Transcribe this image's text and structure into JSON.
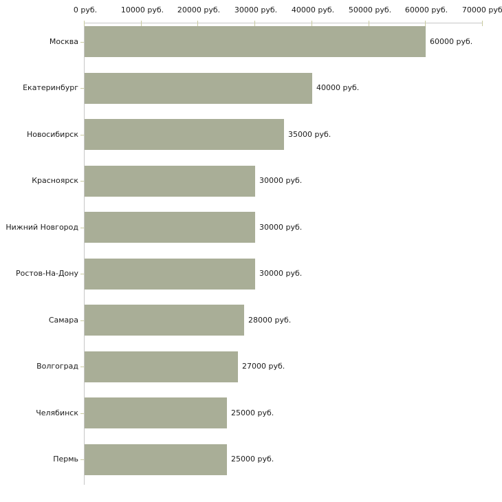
{
  "chart_data": {
    "type": "bar",
    "orientation": "horizontal",
    "title": "",
    "xlabel": "",
    "ylabel": "",
    "xlim": [
      0,
      70000
    ],
    "grid": false,
    "legend": null,
    "unit": "руб.",
    "categories": [
      "Москва",
      "Екатеринбург",
      "Новосибирск",
      "Красноярск",
      "Нижний Новгород",
      "Ростов-На-Дону",
      "Самара",
      "Волгоград",
      "Челябинск",
      "Пермь"
    ],
    "values": [
      60000,
      40000,
      35000,
      30000,
      30000,
      30000,
      28000,
      27000,
      25000,
      25000
    ],
    "value_labels": [
      "60000 руб.",
      "40000 руб.",
      "35000 руб.",
      "30000 руб.",
      "30000 руб.",
      "30000 руб.",
      "28000 руб.",
      "27000 руб.",
      "25000 руб.",
      "25000 руб."
    ],
    "x_ticks": [
      0,
      10000,
      20000,
      30000,
      40000,
      50000,
      60000,
      70000
    ],
    "x_tick_labels": [
      "0 руб.",
      "10000 руб.",
      "20000 руб.",
      "30000 руб.",
      "40000 руб.",
      "50000 руб.",
      "60000 руб.",
      "70000 руб."
    ],
    "colors": {
      "bar": "#a9ae97",
      "axis": "#c6c6c6",
      "tick": "#c9ca9f",
      "text": "#1a1a1a",
      "background": "#ffffff"
    }
  }
}
